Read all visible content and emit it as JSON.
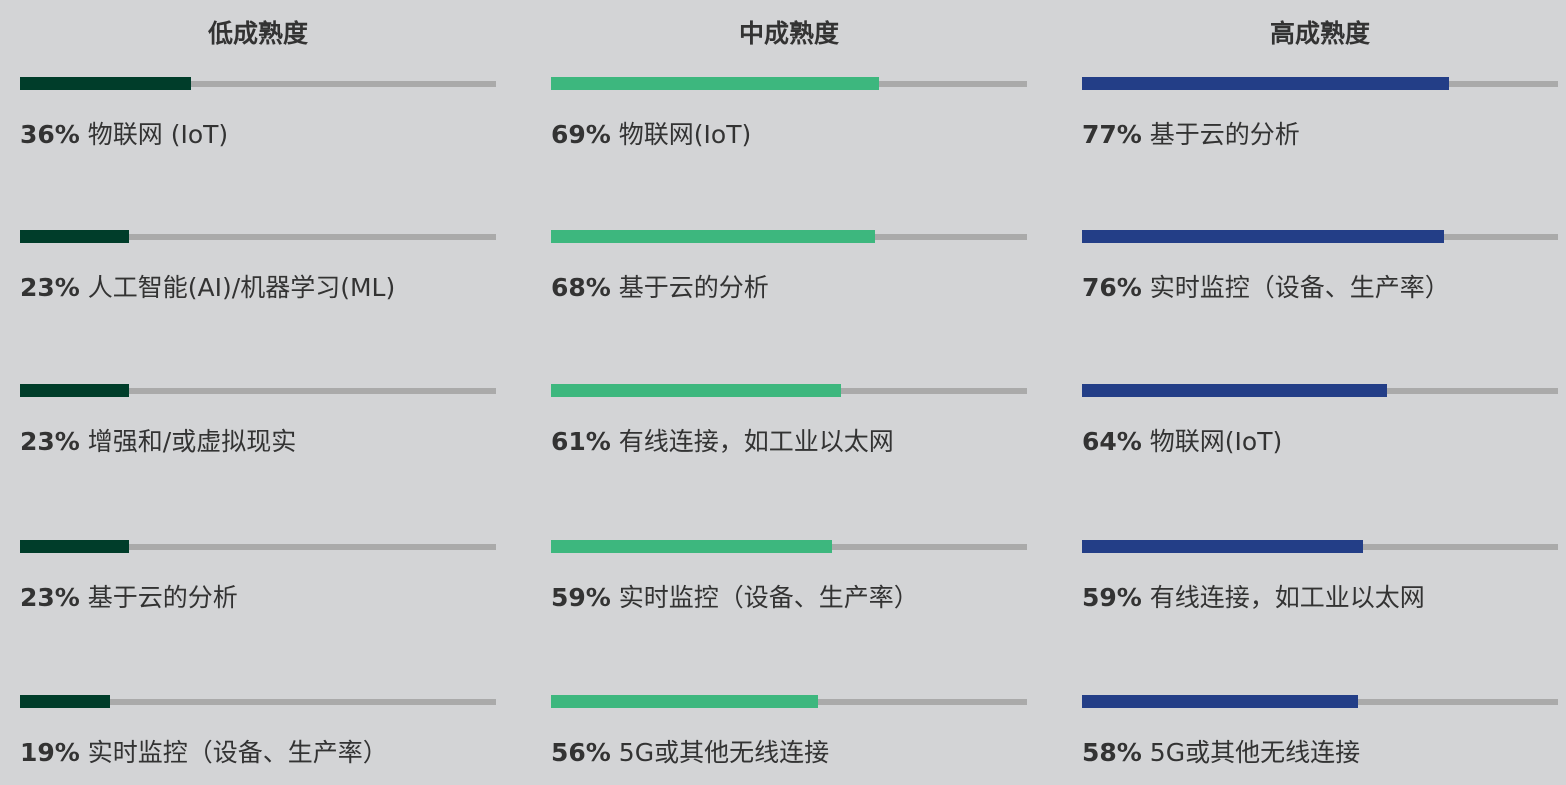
{
  "chart_data": {
    "type": "bar",
    "orientation": "horizontal",
    "xlim": [
      0,
      100
    ],
    "unit": "%",
    "groups": [
      {
        "title": "低成熟度",
        "color": "#003d2a",
        "items": [
          {
            "value": 36,
            "label": "36%",
            "category": "物联网 (IoT)"
          },
          {
            "value": 23,
            "label": "23%",
            "category": "人工智能(AI)/机器学习(ML)"
          },
          {
            "value": 23,
            "label": "23%",
            "category": "增强和/或虚拟现实"
          },
          {
            "value": 23,
            "label": "23%",
            "category": "基于云的分析"
          },
          {
            "value": 19,
            "label": "19%",
            "category": "实时监控（设备、生产率）"
          }
        ]
      },
      {
        "title": "中成熟度",
        "color": "#3db77e",
        "items": [
          {
            "value": 69,
            "label": "69%",
            "category": "物联网(IoT)"
          },
          {
            "value": 68,
            "label": "68%",
            "category": "基于云的分析"
          },
          {
            "value": 61,
            "label": "61%",
            "category": "有线连接，如工业以太网"
          },
          {
            "value": 59,
            "label": "59%",
            "category": "实时监控（设备、生产率）"
          },
          {
            "value": 56,
            "label": "56%",
            "category": "5G或其他无线连接"
          }
        ]
      },
      {
        "title": "高成熟度",
        "color": "#233e87",
        "items": [
          {
            "value": 77,
            "label": "77%",
            "category": "基于云的分析"
          },
          {
            "value": 76,
            "label": "76%",
            "category": "实时监控（设备、生产率）"
          },
          {
            "value": 64,
            "label": "64%",
            "category": "物联网(IoT)"
          },
          {
            "value": 59,
            "label": "59%",
            "category": "有线连接，如工业以太网"
          },
          {
            "value": 58,
            "label": "58%",
            "category": "5G或其他无线连接"
          }
        ]
      }
    ],
    "track_color": "#aaaaaa",
    "background": "#d3d4d6"
  }
}
